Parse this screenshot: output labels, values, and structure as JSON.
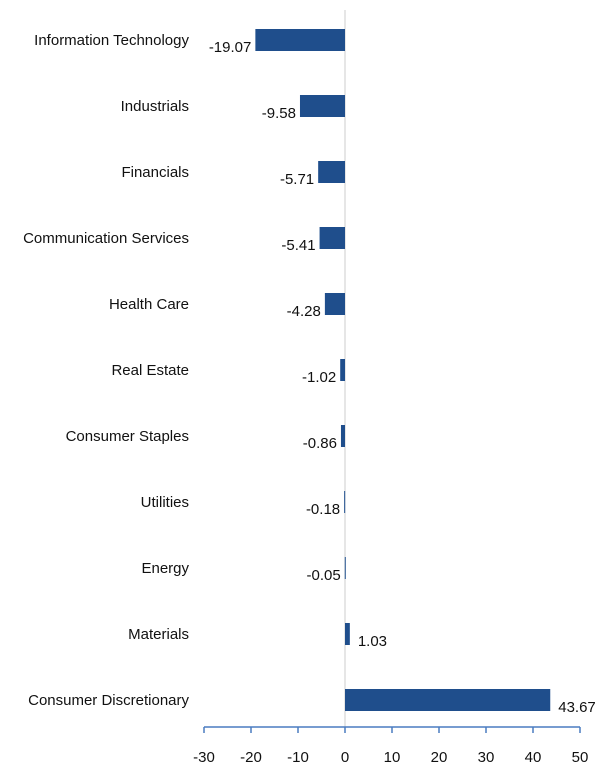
{
  "chart_data": {
    "type": "bar",
    "orientation": "horizontal",
    "categories": [
      "Information Technology",
      "Industrials",
      "Financials",
      "Communication Services",
      "Health Care",
      "Real Estate",
      "Consumer Staples",
      "Utilities",
      "Energy",
      "Materials",
      "Consumer Discretionary"
    ],
    "values": [
      -19.07,
      -9.58,
      -5.71,
      -5.41,
      -4.28,
      -1.02,
      -0.86,
      -0.18,
      -0.05,
      1.03,
      43.67
    ],
    "value_labels": [
      "-19.07",
      "-9.58",
      "-5.71",
      "-5.41",
      "-4.28",
      "-1.02",
      "-0.86",
      "-0.18",
      "-0.05",
      "1.03",
      "43.67"
    ],
    "xlim": [
      -30,
      50
    ],
    "xticks": [
      -30,
      -20,
      -10,
      0,
      10,
      20,
      30,
      40,
      50
    ],
    "bar_color": "#1f4e8c",
    "axis_color": "#4a7cc0",
    "zero_line_color": "#cccccc",
    "grid": false,
    "legend": "none",
    "title": "",
    "xlabel": "",
    "ylabel": ""
  }
}
